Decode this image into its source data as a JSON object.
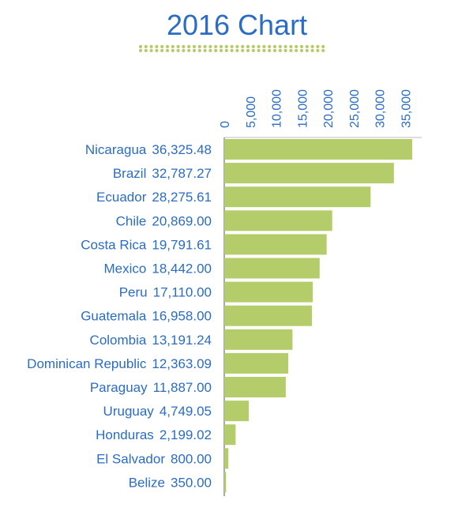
{
  "colors": {
    "title": "#2b6cc4",
    "bar": "#b5cc6a",
    "dots": "#b5cc6a",
    "axis": "#555555"
  },
  "chart_data": {
    "type": "bar",
    "orientation": "horizontal",
    "title": "2016 Chart",
    "x_ticks": [
      "0",
      "5,000",
      "10,000",
      "15,000",
      "20,000",
      "25,000",
      "30,000",
      "35,000"
    ],
    "x_tick_values": [
      0,
      5000,
      10000,
      15000,
      20000,
      25000,
      30000,
      35000
    ],
    "xlim": [
      0,
      37000
    ],
    "grid": false,
    "axis_position": "top",
    "categories": [
      "Nicaragua",
      "Brazil",
      "Ecuador",
      "Chile",
      "Costa Rica",
      "Mexico",
      "Peru",
      "Guatemala",
      "Colombia",
      "Dominican Republic",
      "Paraguay",
      "Uruguay",
      "Honduras",
      "El Salvador",
      "Belize"
    ],
    "values": [
      36325.48,
      32787.27,
      28275.61,
      20869.0,
      19791.61,
      18442.0,
      17110.0,
      16958.0,
      13191.24,
      12363.09,
      11887.0,
      4749.05,
      2199.02,
      800.0,
      350.0
    ],
    "value_labels": [
      "36,325.48",
      "32,787.27",
      "28,275.61",
      "20,869.00",
      "19,791.61",
      "18,442.00",
      "17,110.00",
      "16,958.00",
      "13,191.24",
      "12,363.09",
      "11,887.00",
      "4,749.05",
      "2,199.02",
      "800.00",
      "350.00"
    ]
  }
}
